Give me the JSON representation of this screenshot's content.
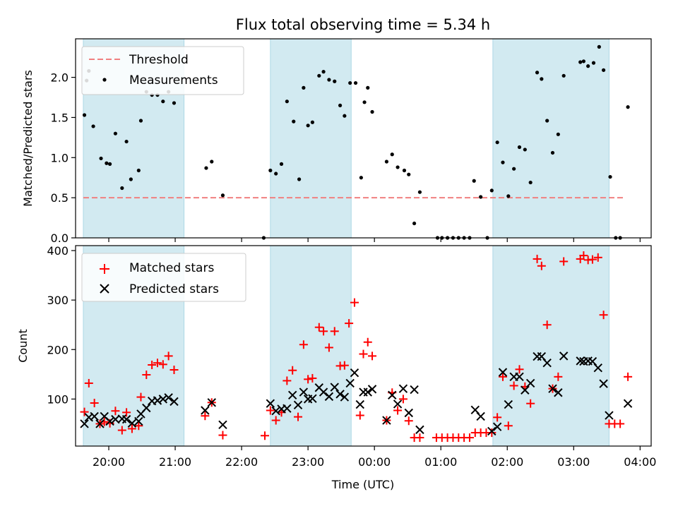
{
  "title": "Flux total observing time = 5.34 h",
  "colors": {
    "observing_band": "#add8e6",
    "threshold": "#f08080",
    "measurements": "#000000",
    "matched": "#ff0000",
    "predicted": "#000000"
  },
  "x_axis": {
    "label": "Time (UTC)",
    "start_time": "19:30",
    "end_time": "04:10",
    "ticks": [
      "20:00",
      "21:00",
      "22:00",
      "23:00",
      "00:00",
      "01:00",
      "02:00",
      "03:00",
      "04:00"
    ]
  },
  "observing_windows": [
    [
      "19:37",
      "21:08"
    ],
    [
      "22:26",
      "23:39"
    ],
    [
      "01:47",
      "03:32"
    ]
  ],
  "chart_data": [
    {
      "type": "scatter",
      "ylabel": "Matched/Predicted stars",
      "ylim": [
        0,
        2.48
      ],
      "yticks": [
        "0.0",
        "0.5",
        "1.0",
        "1.5",
        "2.0"
      ],
      "legend_position": "top-left",
      "threshold": {
        "name": "Threshold",
        "value": 0.5,
        "x_range": [
          "19:37",
          "03:47"
        ]
      },
      "series": [
        {
          "name": "Measurements",
          "marker": "dot",
          "points": [
            [
              "19:38",
              1.53
            ],
            [
              "19:40",
              1.96
            ],
            [
              "19:42",
              2.08
            ],
            [
              "19:46",
              1.39
            ],
            [
              "19:53",
              0.99
            ],
            [
              "19:58",
              0.93
            ],
            [
              "20:01",
              0.92
            ],
            [
              "20:06",
              1.3
            ],
            [
              "20:12",
              0.62
            ],
            [
              "20:16",
              1.2
            ],
            [
              "20:20",
              0.73
            ],
            [
              "20:27",
              0.84
            ],
            [
              "20:29",
              1.46
            ],
            [
              "20:34",
              1.82
            ],
            [
              "20:39",
              1.78
            ],
            [
              "20:44",
              1.78
            ],
            [
              "20:49",
              1.7
            ],
            [
              "20:54",
              1.82
            ],
            [
              "20:59",
              1.68
            ],
            [
              "21:28",
              0.87
            ],
            [
              "21:33",
              0.95
            ],
            [
              "21:43",
              0.53
            ],
            [
              "22:20",
              0.0
            ],
            [
              "22:26",
              0.84
            ],
            [
              "22:31",
              0.8
            ],
            [
              "22:36",
              0.92
            ],
            [
              "22:41",
              1.7
            ],
            [
              "22:47",
              1.45
            ],
            [
              "22:52",
              0.73
            ],
            [
              "22:56",
              1.87
            ],
            [
              "23:00",
              1.4
            ],
            [
              "23:04",
              1.44
            ],
            [
              "23:10",
              2.02
            ],
            [
              "23:14",
              2.07
            ],
            [
              "23:19",
              1.97
            ],
            [
              "23:24",
              1.95
            ],
            [
              "23:29",
              1.65
            ],
            [
              "23:33",
              1.52
            ],
            [
              "23:38",
              1.93
            ],
            [
              "23:43",
              1.93
            ],
            [
              "23:48",
              0.75
            ],
            [
              "23:51",
              1.69
            ],
            [
              "23:54",
              1.87
            ],
            [
              "23:58",
              1.57
            ],
            [
              "00:11",
              0.95
            ],
            [
              "00:16",
              1.04
            ],
            [
              "00:21",
              0.88
            ],
            [
              "00:27",
              0.84
            ],
            [
              "00:31",
              0.79
            ],
            [
              "00:36",
              0.18
            ],
            [
              "00:41",
              0.57
            ],
            [
              "00:57",
              0.0
            ],
            [
              "01:01",
              0.0
            ],
            [
              "01:06",
              0.0
            ],
            [
              "01:11",
              0.0
            ],
            [
              "01:16",
              0.0
            ],
            [
              "01:21",
              0.0
            ],
            [
              "01:26",
              0.0
            ],
            [
              "01:30",
              0.71
            ],
            [
              "01:36",
              0.51
            ],
            [
              "01:42",
              0.0
            ],
            [
              "01:46",
              0.59
            ],
            [
              "01:51",
              1.19
            ],
            [
              "01:56",
              0.94
            ],
            [
              "02:01",
              0.52
            ],
            [
              "02:06",
              0.86
            ],
            [
              "02:11",
              1.13
            ],
            [
              "02:16",
              1.1
            ],
            [
              "02:21",
              0.69
            ],
            [
              "02:27",
              2.06
            ],
            [
              "02:31",
              1.98
            ],
            [
              "02:36",
              1.46
            ],
            [
              "02:41",
              1.06
            ],
            [
              "02:46",
              1.29
            ],
            [
              "02:51",
              2.02
            ],
            [
              "03:06",
              2.19
            ],
            [
              "03:09",
              2.2
            ],
            [
              "03:13",
              2.14
            ],
            [
              "03:18",
              2.18
            ],
            [
              "03:23",
              2.38
            ],
            [
              "03:27",
              2.09
            ],
            [
              "03:33",
              0.76
            ],
            [
              "03:38",
              0.0
            ],
            [
              "03:42",
              0.0
            ],
            [
              "03:49",
              1.63
            ]
          ]
        }
      ]
    },
    {
      "type": "scatter",
      "ylabel": "Count",
      "ylim": [
        5,
        410
      ],
      "yticks": [
        "100",
        "200",
        "300",
        "400"
      ],
      "legend_position": "top-left",
      "series": [
        {
          "name": "Matched stars",
          "marker": "plus",
          "points": [
            [
              "19:38",
              74
            ],
            [
              "19:42",
              132
            ],
            [
              "19:47",
              92
            ],
            [
              "19:52",
              50
            ],
            [
              "19:56",
              54
            ],
            [
              "20:01",
              51
            ],
            [
              "20:06",
              76
            ],
            [
              "20:12",
              37
            ],
            [
              "20:16",
              73
            ],
            [
              "20:21",
              40
            ],
            [
              "20:27",
              46
            ],
            [
              "20:29",
              104
            ],
            [
              "20:34",
              149
            ],
            [
              "20:39",
              169
            ],
            [
              "20:44",
              173
            ],
            [
              "20:49",
              170
            ],
            [
              "20:54",
              187
            ],
            [
              "20:59",
              159
            ],
            [
              "21:27",
              66
            ],
            [
              "21:33",
              93
            ],
            [
              "21:43",
              27
            ],
            [
              "22:21",
              26
            ],
            [
              "22:26",
              77
            ],
            [
              "22:31",
              57
            ],
            [
              "22:36",
              73
            ],
            [
              "22:41",
              137
            ],
            [
              "22:46",
              158
            ],
            [
              "22:51",
              64
            ],
            [
              "22:56",
              210
            ],
            [
              "23:00",
              140
            ],
            [
              "23:04",
              142
            ],
            [
              "23:10",
              245
            ],
            [
              "23:14",
              237
            ],
            [
              "23:19",
              204
            ],
            [
              "23:24",
              237
            ],
            [
              "23:29",
              167
            ],
            [
              "23:33",
              168
            ],
            [
              "23:37",
              253
            ],
            [
              "23:42",
              295
            ],
            [
              "23:47",
              67
            ],
            [
              "23:50",
              191
            ],
            [
              "23:54",
              215
            ],
            [
              "23:58",
              187
            ],
            [
              "00:11",
              57
            ],
            [
              "00:16",
              113
            ],
            [
              "00:21",
              77
            ],
            [
              "00:26",
              100
            ],
            [
              "00:31",
              56
            ],
            [
              "00:36",
              22
            ],
            [
              "00:41",
              22
            ],
            [
              "00:56",
              22
            ],
            [
              "01:01",
              22
            ],
            [
              "01:06",
              22
            ],
            [
              "01:11",
              22
            ],
            [
              "01:16",
              22
            ],
            [
              "01:21",
              22
            ],
            [
              "01:26",
              22
            ],
            [
              "01:31",
              32
            ],
            [
              "01:36",
              32
            ],
            [
              "01:41",
              32
            ],
            [
              "01:46",
              32
            ],
            [
              "01:51",
              63
            ],
            [
              "01:56",
              145
            ],
            [
              "02:01",
              46
            ],
            [
              "02:06",
              127
            ],
            [
              "02:11",
              160
            ],
            [
              "02:16",
              125
            ],
            [
              "02:21",
              91
            ],
            [
              "02:27",
              383
            ],
            [
              "02:31",
              369
            ],
            [
              "02:36",
              250
            ],
            [
              "02:41",
              121
            ],
            [
              "02:46",
              145
            ],
            [
              "02:51",
              378
            ],
            [
              "03:06",
              383
            ],
            [
              "03:09",
              390
            ],
            [
              "03:13",
              381
            ],
            [
              "03:17",
              382
            ],
            [
              "03:22",
              386
            ],
            [
              "03:27",
              270
            ],
            [
              "03:32",
              50
            ],
            [
              "03:37",
              50
            ],
            [
              "03:42",
              50
            ],
            [
              "03:49",
              145
            ]
          ]
        },
        {
          "name": "Predicted stars",
          "marker": "x",
          "points": [
            [
              "19:38",
              50
            ],
            [
              "19:42",
              63
            ],
            [
              "19:47",
              65
            ],
            [
              "19:52",
              50
            ],
            [
              "19:56",
              65
            ],
            [
              "20:01",
              55
            ],
            [
              "20:06",
              59
            ],
            [
              "20:12",
              60
            ],
            [
              "20:16",
              59
            ],
            [
              "20:21",
              51
            ],
            [
              "20:27",
              55
            ],
            [
              "20:29",
              70
            ],
            [
              "20:34",
              82
            ],
            [
              "20:39",
              96
            ],
            [
              "20:44",
              97
            ],
            [
              "20:49",
              100
            ],
            [
              "20:54",
              103
            ],
            [
              "20:59",
              95
            ],
            [
              "21:27",
              77
            ],
            [
              "21:33",
              93
            ],
            [
              "21:43",
              48
            ],
            [
              "22:26",
              91
            ],
            [
              "22:31",
              76
            ],
            [
              "22:36",
              80
            ],
            [
              "22:41",
              81
            ],
            [
              "22:46",
              108
            ],
            [
              "22:51",
              88
            ],
            [
              "22:56",
              114
            ],
            [
              "23:00",
              100
            ],
            [
              "23:04",
              101
            ],
            [
              "23:10",
              123
            ],
            [
              "23:14",
              114
            ],
            [
              "23:19",
              105
            ],
            [
              "23:24",
              124
            ],
            [
              "23:29",
              110
            ],
            [
              "23:33",
              104
            ],
            [
              "23:38",
              132
            ],
            [
              "23:42",
              153
            ],
            [
              "23:47",
              89
            ],
            [
              "23:50",
              114
            ],
            [
              "23:54",
              114
            ],
            [
              "23:58",
              120
            ],
            [
              "00:11",
              57
            ],
            [
              "00:16",
              108
            ],
            [
              "00:21",
              90
            ],
            [
              "00:26",
              121
            ],
            [
              "00:31",
              72
            ],
            [
              "00:36",
              119
            ],
            [
              "00:41",
              38
            ],
            [
              "01:31",
              78
            ],
            [
              "01:36",
              65
            ],
            [
              "01:46",
              35
            ],
            [
              "01:51",
              44
            ],
            [
              "01:56",
              154
            ],
            [
              "02:01",
              89
            ],
            [
              "02:06",
              145
            ],
            [
              "02:11",
              145
            ],
            [
              "02:16",
              118
            ],
            [
              "02:21",
              132
            ],
            [
              "02:27",
              186
            ],
            [
              "02:31",
              186
            ],
            [
              "02:36",
              173
            ],
            [
              "02:41",
              121
            ],
            [
              "02:46",
              113
            ],
            [
              "02:51",
              187
            ],
            [
              "03:06",
              177
            ],
            [
              "03:09",
              176
            ],
            [
              "03:13",
              177
            ],
            [
              "03:17",
              176
            ],
            [
              "03:22",
              163
            ],
            [
              "03:27",
              131
            ],
            [
              "03:32",
              67
            ],
            [
              "03:49",
              91
            ]
          ]
        }
      ]
    }
  ]
}
